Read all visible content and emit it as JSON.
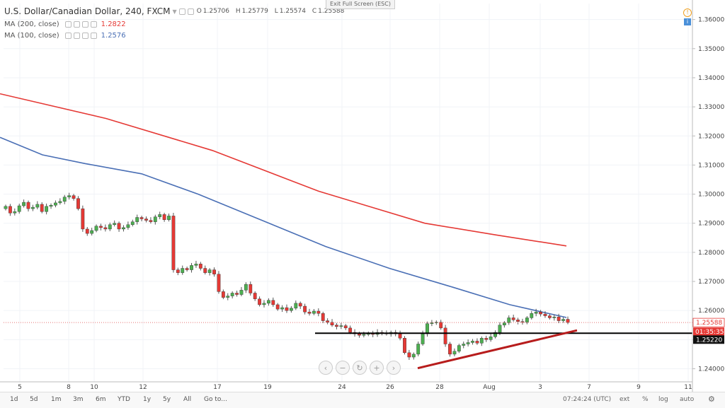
{
  "header": {
    "title": "U.S. Dollar/Canadian Dollar, 240, FXCM",
    "ohlc": [
      {
        "label": "O",
        "value": "1.25706"
      },
      {
        "label": "H",
        "value": "1.25779"
      },
      {
        "label": "L",
        "value": "1.25574"
      },
      {
        "label": "C",
        "value": "1.25588"
      }
    ],
    "fullscreen_label": "Exit Full Screen (ESC)"
  },
  "indicators": [
    {
      "label": "MA (200, close)",
      "value": "1.2822",
      "color": "#e53935"
    },
    {
      "label": "MA (100, close)",
      "value": "1.2576",
      "color": "#4a6fb5"
    }
  ],
  "chart_data": {
    "type": "candlestick",
    "symbol": "USD/CAD",
    "timeframe": "240",
    "ylim": [
      1.2355,
      1.3655
    ],
    "y_ticks": [
      "1.36000",
      "1.35000",
      "1.34000",
      "1.33000",
      "1.32000",
      "1.31000",
      "1.30000",
      "1.29000",
      "1.28000",
      "1.27000",
      "1.26000",
      "1.25000",
      "1.24000"
    ],
    "x_ticks": [
      "5",
      "8",
      "10",
      "12",
      "17",
      "19",
      "24",
      "26",
      "28",
      "Aug",
      "3",
      "7",
      "9",
      "11"
    ],
    "last_price": "1.25588",
    "countdown": "01:35:35",
    "level_label": "1.25220",
    "support_level": 1.2522,
    "closes": [
      1.2958,
      1.2935,
      1.294,
      1.296,
      1.2972,
      1.295,
      1.2955,
      1.2965,
      1.294,
      1.2958,
      1.2962,
      1.297,
      1.2975,
      1.299,
      1.2995,
      1.2985,
      1.295,
      1.288,
      1.2865,
      1.2875,
      1.289,
      1.2885,
      1.288,
      1.2895,
      1.29,
      1.288,
      1.2885,
      1.2895,
      1.2905,
      1.292,
      1.2915,
      1.291,
      1.2905,
      1.2922,
      1.293,
      1.2912,
      1.2925,
      1.274,
      1.273,
      1.2745,
      1.274,
      1.2755,
      1.276,
      1.2745,
      1.273,
      1.274,
      1.2725,
      1.2665,
      1.2645,
      1.265,
      1.266,
      1.2655,
      1.267,
      1.269,
      1.266,
      1.264,
      1.262,
      1.2625,
      1.2635,
      1.262,
      1.2605,
      1.261,
      1.26,
      1.2608,
      1.2625,
      1.2615,
      1.2595,
      1.259,
      1.2598,
      1.259,
      1.2565,
      1.256,
      1.255,
      1.2545,
      1.2548,
      1.254,
      1.2525,
      1.252,
      1.2515,
      1.2518,
      1.2522,
      1.2518,
      1.2525,
      1.2522,
      1.252,
      1.2525,
      1.252,
      1.2505,
      1.2455,
      1.244,
      1.245,
      1.2485,
      1.252,
      1.2555,
      1.2558,
      1.256,
      1.254,
      1.2485,
      1.245,
      1.246,
      1.248,
      1.2485,
      1.249,
      1.2495,
      1.2488,
      1.2505,
      1.25,
      1.251,
      1.2525,
      1.255,
      1.2558,
      1.2575,
      1.2568,
      1.2562,
      1.256,
      1.2575,
      1.259,
      1.2595,
      1.2588,
      1.2582,
      1.2575,
      1.2578,
      1.2565,
      1.257,
      1.2559
    ],
    "series": [
      {
        "name": "MA (200, close)",
        "points": [
          [
            0,
            1.3345
          ],
          [
            150,
            1.326
          ],
          [
            300,
            1.315
          ],
          [
            450,
            1.301
          ],
          [
            600,
            1.29
          ],
          [
            700,
            1.286
          ],
          [
            800,
            1.2822
          ]
        ]
      },
      {
        "name": "MA (100, close)",
        "points": [
          [
            0,
            1.3195
          ],
          [
            60,
            1.3135
          ],
          [
            120,
            1.3105
          ],
          [
            200,
            1.307
          ],
          [
            280,
            1.3
          ],
          [
            360,
            1.292
          ],
          [
            460,
            1.282
          ],
          [
            550,
            1.2745
          ],
          [
            640,
            1.268
          ],
          [
            720,
            1.262
          ],
          [
            800,
            1.2576
          ]
        ]
      }
    ],
    "trendline": [
      [
        590,
        1.2402
      ],
      [
        815,
        1.2532
      ]
    ]
  },
  "controls": {
    "nav_icons": [
      "scroll-left-icon",
      "zoom-out-icon",
      "reset-icon",
      "zoom-in-icon",
      "scroll-right-icon"
    ]
  },
  "bottombar": {
    "timeframes": [
      "1d",
      "5d",
      "1m",
      "3m",
      "6m",
      "YTD",
      "1y",
      "5y",
      "All",
      "Go to..."
    ],
    "clock": "07:24:24 (UTC)",
    "options": [
      "ext",
      "%",
      "log",
      "auto"
    ]
  }
}
